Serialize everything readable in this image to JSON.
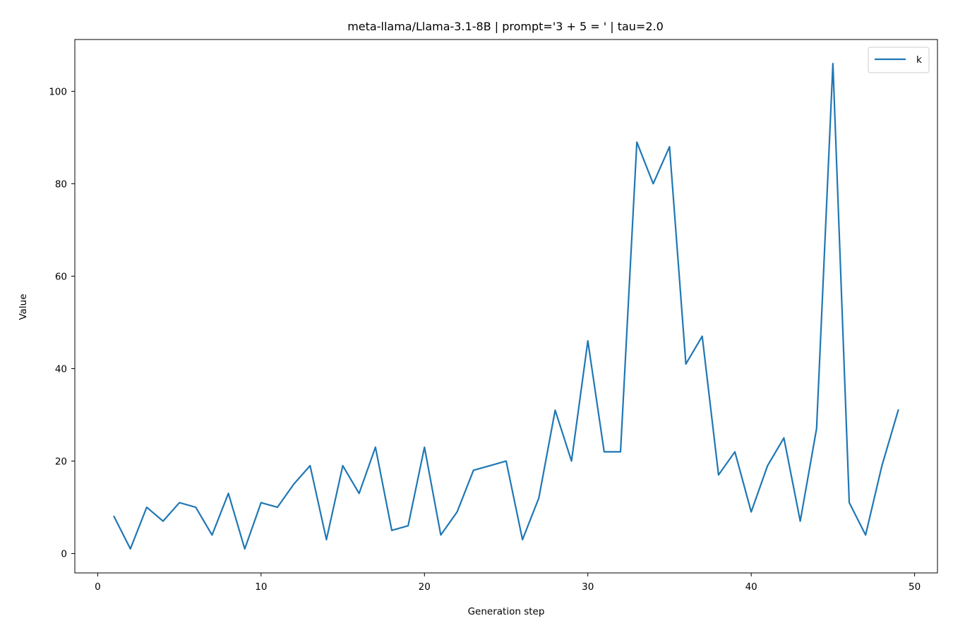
{
  "chart_data": {
    "type": "line",
    "title": "meta-llama/Llama-3.1-8B | prompt='3 + 5 = ' | tau=2.0",
    "xlabel": "Generation step",
    "ylabel": "Value",
    "xlim": [
      -1.4,
      51.4
    ],
    "ylim": [
      -4.2,
      111.2
    ],
    "xticks": [
      0,
      10,
      20,
      30,
      40,
      50
    ],
    "yticks": [
      0,
      20,
      40,
      60,
      80,
      100
    ],
    "grid": false,
    "legend_position": "upper right",
    "series": [
      {
        "name": "k",
        "color": "#1f77b4",
        "x": [
          1,
          2,
          3,
          4,
          5,
          6,
          7,
          8,
          9,
          10,
          11,
          12,
          13,
          14,
          15,
          16,
          17,
          18,
          19,
          20,
          21,
          22,
          23,
          24,
          25,
          26,
          27,
          28,
          29,
          30,
          31,
          32,
          33,
          34,
          35,
          36,
          37,
          38,
          39,
          40,
          41,
          42,
          43,
          44,
          45,
          46,
          47,
          48,
          49
        ],
        "y": [
          8,
          1,
          10,
          7,
          11,
          10,
          4,
          13,
          1,
          11,
          10,
          15,
          19,
          3,
          19,
          13,
          23,
          5,
          6,
          23,
          4,
          9,
          18,
          19,
          20,
          3,
          12,
          31,
          20,
          46,
          22,
          22,
          89,
          80,
          88,
          41,
          47,
          17,
          22,
          9,
          19,
          25,
          7,
          27,
          106,
          11,
          4,
          19,
          31
        ]
      }
    ]
  }
}
